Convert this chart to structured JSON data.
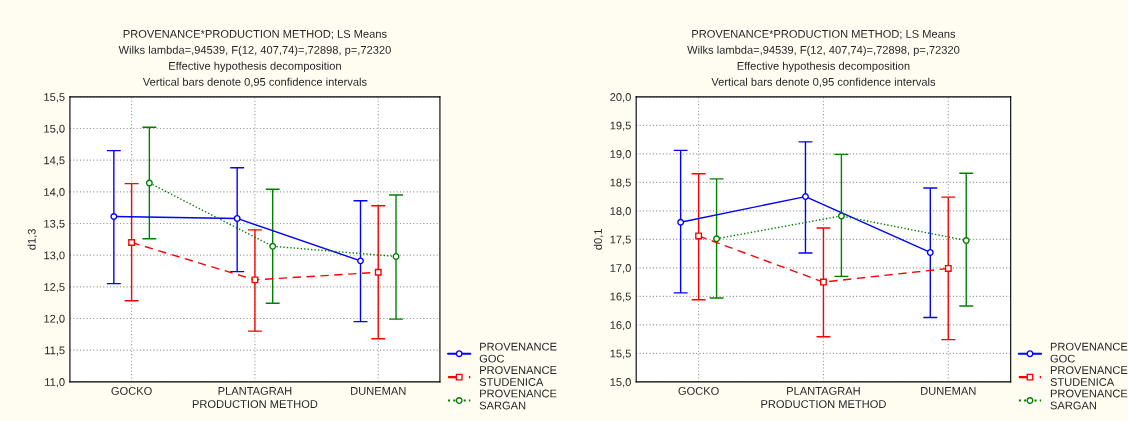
{
  "chart_data": [
    {
      "type": "line",
      "title": "PROVENANCE*PRODUCTION METHOD; LS Means",
      "subtitle": "Wilks lambda=,94539, F(12, 407,74)=,72898, p=,72320\nEffective hypothesis decomposition\nVertical bars denote 0,95 confidence intervals",
      "xlabel": "PRODUCTION METHOD",
      "ylabel": "d1,3",
      "categories": [
        "GOCKO",
        "PLANTAGRAH",
        "DUNEMAN"
      ],
      "series": [
        {
          "name": "PROVENANCE\nGOC",
          "color": "#0000ff",
          "marker": "circle",
          "line_style": "solid",
          "values": [
            13.61,
            13.58,
            12.91
          ],
          "errors": [
            [
              12.55,
              14.65
            ],
            [
              12.74,
              14.38
            ],
            [
              11.95,
              13.86
            ]
          ]
        },
        {
          "name": "PROVENANCE\nSTUDENICA",
          "color": "#ff0000",
          "marker": "square",
          "line_style": "dashed",
          "values": [
            13.2,
            12.61,
            12.73
          ],
          "errors": [
            [
              12.28,
              14.13
            ],
            [
              11.8,
              13.4
            ],
            [
              11.68,
              13.78
            ]
          ]
        },
        {
          "name": "PROVENANCE\nSARGAN",
          "color": "#008000",
          "marker": "circle",
          "line_style": "dotted",
          "values": [
            14.14,
            13.14,
            12.98
          ],
          "errors": [
            [
              13.26,
              15.02
            ],
            [
              12.24,
              14.04
            ],
            [
              11.99,
              13.95
            ]
          ]
        }
      ],
      "ylim": [
        11.0,
        15.5
      ],
      "yticks": [
        {
          "value": 11.0,
          "label": "11,0"
        },
        {
          "value": 11.5,
          "label": "11,5"
        },
        {
          "value": 12.0,
          "label": "12,0"
        },
        {
          "value": 12.5,
          "label": "12,5"
        },
        {
          "value": 13.0,
          "label": "13,0"
        },
        {
          "value": 13.5,
          "label": "13,5"
        },
        {
          "value": 14.0,
          "label": "14,0"
        },
        {
          "value": 14.5,
          "label": "14,5"
        },
        {
          "value": 15.0,
          "label": "15,0"
        },
        {
          "value": 15.5,
          "label": "15,5"
        }
      ],
      "grid": true,
      "legend": "bottom right"
    },
    {
      "type": "line",
      "title": "PROVENANCE*PRODUCTION METHOD; LS Means",
      "subtitle": "Wilks lambda=,94539, F(12, 407,74)=,72898, p=,72320\nEffective hypothesis decomposition\nVertical bars denote 0,95 confidence intervals",
      "xlabel": "PRODUCTION METHOD",
      "ylabel": "d0,1",
      "categories": [
        "GOCKO",
        "PLANTAGRAH",
        "DUNEMAN"
      ],
      "series": [
        {
          "name": "PROVENANCE\nGOC",
          "color": "#0000ff",
          "marker": "circle",
          "line_style": "solid",
          "values": [
            17.8,
            18.25,
            17.27
          ],
          "errors": [
            [
              16.56,
              19.06
            ],
            [
              17.26,
              19.21
            ],
            [
              16.13,
              18.4
            ]
          ]
        },
        {
          "name": "PROVENANCE\nSTUDENICA",
          "color": "#ff0000",
          "marker": "square",
          "line_style": "dashed",
          "values": [
            17.56,
            16.75,
            16.99
          ],
          "errors": [
            [
              16.44,
              18.65
            ],
            [
              15.79,
              17.7
            ],
            [
              15.74,
              18.24
            ]
          ]
        },
        {
          "name": "PROVENANCE\nSARGAN",
          "color": "#008000",
          "marker": "circle",
          "line_style": "dotted",
          "values": [
            17.51,
            17.91,
            17.48
          ],
          "errors": [
            [
              16.47,
              18.56
            ],
            [
              16.85,
              18.99
            ],
            [
              16.33,
              18.66
            ]
          ]
        }
      ],
      "ylim": [
        15.0,
        20.0
      ],
      "yticks": [
        {
          "value": 15.0,
          "label": "15,0"
        },
        {
          "value": 15.5,
          "label": "15,5"
        },
        {
          "value": 16.0,
          "label": "16,0"
        },
        {
          "value": 16.5,
          "label": "16,5"
        },
        {
          "value": 17.0,
          "label": "17,0"
        },
        {
          "value": 17.5,
          "label": "17,5"
        },
        {
          "value": 18.0,
          "label": "18,0"
        },
        {
          "value": 18.5,
          "label": "18,5"
        },
        {
          "value": 19.0,
          "label": "19,0"
        },
        {
          "value": 19.5,
          "label": "19,5"
        },
        {
          "value": 20.0,
          "label": "20,0"
        }
      ],
      "grid": true,
      "legend": "bottom right"
    }
  ]
}
